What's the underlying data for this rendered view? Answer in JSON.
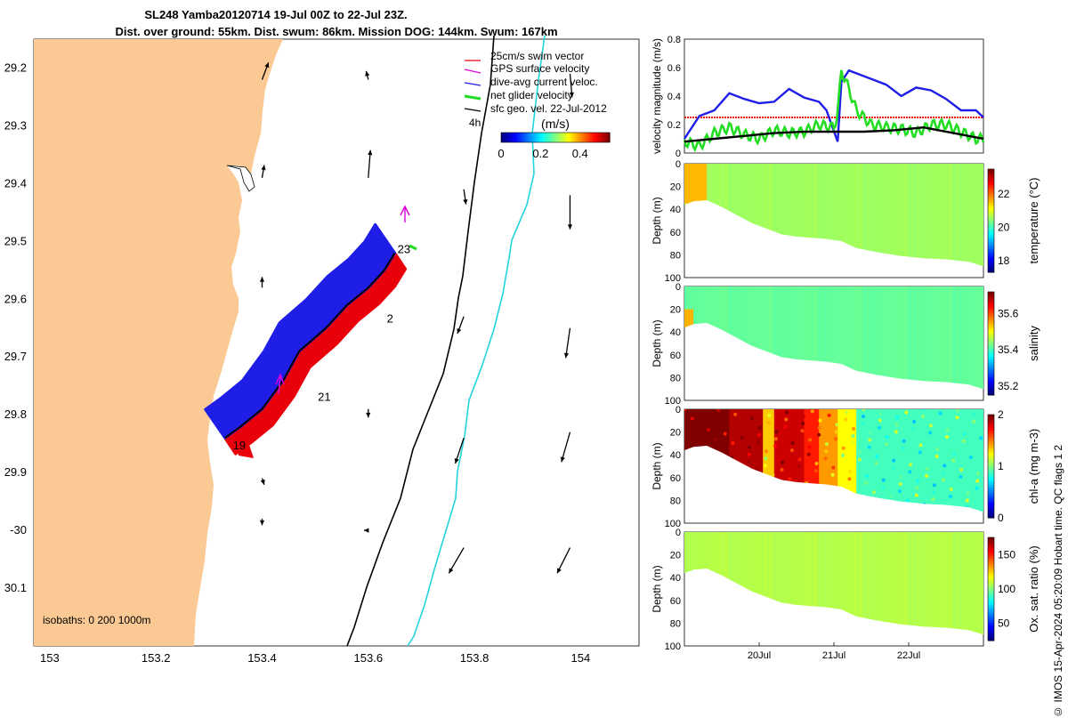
{
  "title": {
    "line1": "SL248 Yamba20120714 19-Jul 00Z to 22-Jul 23Z.",
    "line2": "Dist. over ground: 55km. Dist. swum: 86km. Mission DOG: 144km. Swum: 167km"
  },
  "side_text": "© IMOS 15-Apr-2024 05:20:09 Hobart time. QC flags 1  2",
  "colors": {
    "land": "#fbc993",
    "swim": "#e8000a",
    "gps": "#dd00dd",
    "diveavg": "#1e1ee6",
    "net": "#22dd22",
    "geo": "#000000",
    "isobath_200": "#000000",
    "isobath_1000": "#22d4dd"
  },
  "chart_data": [
    {
      "type": "map",
      "name": "glider-track-map",
      "lon_ticks": [
        "153",
        "153.2",
        "153.4",
        "153.6",
        "153.8",
        "154"
      ],
      "lat_ticks": [
        "29.2",
        "29.3",
        "29.4",
        "29.5",
        "29.6",
        "29.7",
        "29.8",
        "29.9",
        "-30",
        "30.1"
      ],
      "xlim": [
        152.97,
        154.11
      ],
      "ylim": [
        -30.2,
        -29.15
      ],
      "legend": {
        "placement": "top-right",
        "entries": [
          {
            "label": "25cm/s swim vector",
            "color": "swim"
          },
          {
            "label": "GPS surface velocity",
            "color": "gps"
          },
          {
            "label": "dive-avg current veloc.",
            "color": "diveavg"
          },
          {
            "label": "net glider velocity",
            "color": "net"
          },
          {
            "label": "sfc geo. vel. 22-Jul-2012",
            "color": "geo"
          }
        ]
      },
      "colorbar": {
        "label": "(m/s)",
        "ticks": [
          "0",
          "0.2",
          "0.4"
        ],
        "range": [
          0,
          0.55
        ]
      },
      "scale_label": "4h",
      "isobaths_label": "isobaths: 0   200  1000m",
      "day_labels": [
        {
          "text": "23",
          "lon": 153.655,
          "lat": -29.52
        },
        {
          "text": "2",
          "lon": 153.635,
          "lat": -29.64
        },
        {
          "text": "21",
          "lon": 153.505,
          "lat": -29.776
        },
        {
          "text": "19",
          "lon": 153.345,
          "lat": -29.86
        }
      ],
      "track": [
        [
          153.33,
          -29.84
        ],
        [
          153.36,
          -29.82
        ],
        [
          153.4,
          -29.79
        ],
        [
          153.44,
          -29.74
        ],
        [
          153.47,
          -29.69
        ],
        [
          153.52,
          -29.65
        ],
        [
          153.56,
          -29.61
        ],
        [
          153.6,
          -29.58
        ],
        [
          153.63,
          -29.55
        ],
        [
          153.65,
          -29.52
        ]
      ],
      "geo_vectors": [
        {
          "lon": 153.4,
          "lat": -29.22,
          "u": 0.06,
          "v": 0.16
        },
        {
          "lon": 153.6,
          "lat": -29.22,
          "u": -0.02,
          "v": 0.08
        },
        {
          "lon": 153.98,
          "lat": -29.21,
          "u": 0.02,
          "v": -0.22
        },
        {
          "lon": 153.4,
          "lat": -29.39,
          "u": 0.02,
          "v": 0.12
        },
        {
          "lon": 153.6,
          "lat": -29.39,
          "u": 0.02,
          "v": 0.26
        },
        {
          "lon": 153.78,
          "lat": -29.41,
          "u": 0.02,
          "v": -0.14
        },
        {
          "lon": 153.98,
          "lat": -29.42,
          "u": 0.0,
          "v": -0.32
        },
        {
          "lon": 153.4,
          "lat": -29.58,
          "u": 0.0,
          "v": 0.1
        },
        {
          "lon": 153.78,
          "lat": -29.63,
          "u": -0.06,
          "v": -0.16
        },
        {
          "lon": 153.98,
          "lat": -29.65,
          "u": -0.04,
          "v": -0.28
        },
        {
          "lon": 153.6,
          "lat": -29.79,
          "u": 0.0,
          "v": -0.08
        },
        {
          "lon": 153.78,
          "lat": -29.84,
          "u": -0.08,
          "v": -0.24
        },
        {
          "lon": 153.98,
          "lat": -29.83,
          "u": -0.08,
          "v": -0.28
        },
        {
          "lon": 153.4,
          "lat": -29.91,
          "u": 0.02,
          "v": -0.06
        },
        {
          "lon": 153.4,
          "lat": -29.98,
          "u": 0.0,
          "v": -0.06
        },
        {
          "lon": 153.6,
          "lat": -30.0,
          "u": -0.04,
          "v": 0.0
        },
        {
          "lon": 153.78,
          "lat": -30.03,
          "u": -0.14,
          "v": -0.24
        },
        {
          "lon": 153.98,
          "lat": -30.03,
          "u": -0.12,
          "v": -0.24
        }
      ]
    },
    {
      "type": "line",
      "name": "velocity-magnitude",
      "ylabel": "velocity magnitude (m/s)",
      "y_ticks": [
        "0",
        "0.2",
        "0.4",
        "0.6",
        "0.8"
      ],
      "ylim": [
        0,
        0.8
      ],
      "xlim": [
        19.0,
        23.0
      ],
      "series": [
        {
          "color": "diveavg",
          "x": [
            19.0,
            19.2,
            19.4,
            19.6,
            19.8,
            20.0,
            20.2,
            20.4,
            20.6,
            20.8,
            20.9,
            21.05,
            21.1,
            21.2,
            21.3,
            21.5,
            21.7,
            21.9,
            22.1,
            22.3,
            22.5,
            22.7,
            22.9,
            23.0
          ],
          "y": [
            0.1,
            0.26,
            0.3,
            0.42,
            0.38,
            0.35,
            0.36,
            0.45,
            0.39,
            0.36,
            0.3,
            0.08,
            0.5,
            0.58,
            0.56,
            0.52,
            0.48,
            0.4,
            0.46,
            0.44,
            0.38,
            0.3,
            0.3,
            0.25
          ]
        },
        {
          "color": "net",
          "x": [
            19.0,
            19.2,
            19.4,
            19.6,
            19.8,
            20.0,
            20.2,
            20.4,
            20.6,
            20.8,
            21.0,
            21.05,
            21.1,
            21.2,
            21.3,
            21.5,
            21.7,
            21.9,
            22.1,
            22.3,
            22.5,
            22.7,
            22.9,
            23.0
          ],
          "y": [
            0.08,
            0.05,
            0.14,
            0.18,
            0.13,
            0.1,
            0.16,
            0.14,
            0.15,
            0.2,
            0.18,
            0.28,
            0.58,
            0.45,
            0.3,
            0.2,
            0.18,
            0.17,
            0.14,
            0.2,
            0.2,
            0.15,
            0.1,
            0.1
          ]
        },
        {
          "color": "geo",
          "x": [
            19.0,
            19.4,
            19.8,
            20.2,
            20.6,
            21.0,
            21.4,
            21.8,
            22.2,
            22.6,
            23.0
          ],
          "y": [
            0.08,
            0.1,
            0.12,
            0.14,
            0.15,
            0.15,
            0.15,
            0.16,
            0.18,
            0.14,
            0.1
          ]
        }
      ],
      "reference_line": {
        "y": 0.25,
        "color": "swim"
      }
    },
    {
      "type": "heatmap",
      "name": "temperature-section",
      "ylabel": "Depth (m)",
      "y_ticks": [
        "0",
        "20",
        "40",
        "60",
        "80",
        "100"
      ],
      "ylim": [
        0,
        100
      ],
      "colorbar": {
        "label": "temperature (°C)",
        "ticks": [
          "18",
          "20",
          "22"
        ],
        "range": [
          17.3,
          23.5
        ]
      },
      "base_value": 20.6,
      "patches": [
        {
          "x0": 19.0,
          "x1": 19.3,
          "d0": 0,
          "d1": 35,
          "value": 21.6
        }
      ]
    },
    {
      "type": "heatmap",
      "name": "salinity-section",
      "ylabel": "Depth (m)",
      "y_ticks": [
        "0",
        "20",
        "40",
        "60",
        "80",
        "100"
      ],
      "ylim": [
        0,
        100
      ],
      "colorbar": {
        "label": "salinity",
        "ticks": [
          "35.2",
          "35.4",
          "35.6"
        ],
        "range": [
          35.15,
          35.72
        ]
      },
      "base_value": 35.42,
      "patches": [
        {
          "x0": 19.0,
          "x1": 19.12,
          "d0": 20,
          "d1": 40,
          "value": 35.55
        }
      ]
    },
    {
      "type": "heatmap",
      "name": "chla-section",
      "ylabel": "Depth (m)",
      "y_ticks": [
        "0",
        "20",
        "40",
        "60",
        "80",
        "100"
      ],
      "ylim": [
        0,
        100
      ],
      "colorbar": {
        "label": "chl-a (mg m-3)",
        "ticks": [
          "0",
          "1",
          "2"
        ],
        "range": [
          0,
          2
        ]
      },
      "bands": [
        {
          "x0": 19.0,
          "x1": 19.6,
          "value": 2.0
        },
        {
          "x0": 19.6,
          "x1": 20.05,
          "value": 1.9
        },
        {
          "x0": 20.05,
          "x1": 20.2,
          "value": 1.35
        },
        {
          "x0": 20.2,
          "x1": 20.6,
          "value": 1.85
        },
        {
          "x0": 20.6,
          "x1": 20.8,
          "value": 1.7
        },
        {
          "x0": 20.8,
          "x1": 21.05,
          "value": 1.45
        },
        {
          "x0": 21.05,
          "x1": 21.3,
          "value": 1.25
        },
        {
          "x0": 21.3,
          "x1": 23.0,
          "value": 0.88
        }
      ]
    },
    {
      "type": "heatmap",
      "name": "oxygen-section",
      "ylabel": "Depth (m)",
      "y_ticks": [
        "0",
        "20",
        "40",
        "60",
        "80",
        "100"
      ],
      "ylim": [
        0,
        100
      ],
      "x_ticks": [
        "20Jul",
        "21Jul",
        "22Jul"
      ],
      "x_tick_values": [
        20.0,
        21.0,
        22.0
      ],
      "colorbar": {
        "label": "Ox. sat. ratio (%)",
        "ticks": [
          "50",
          "100",
          "150"
        ],
        "range": [
          25,
          175
        ]
      },
      "base_value": 108
    }
  ],
  "seafloor": {
    "x": [
      19.0,
      19.12,
      19.3,
      19.5,
      19.7,
      19.9,
      20.1,
      20.3,
      20.5,
      20.7,
      20.9,
      21.1,
      21.3,
      21.6,
      21.9,
      22.2,
      22.5,
      22.8,
      23.0
    ],
    "depth": [
      36,
      33,
      32,
      38,
      45,
      52,
      57,
      62,
      64,
      65,
      66,
      68,
      74,
      78,
      81,
      83,
      84,
      86,
      90
    ]
  }
}
